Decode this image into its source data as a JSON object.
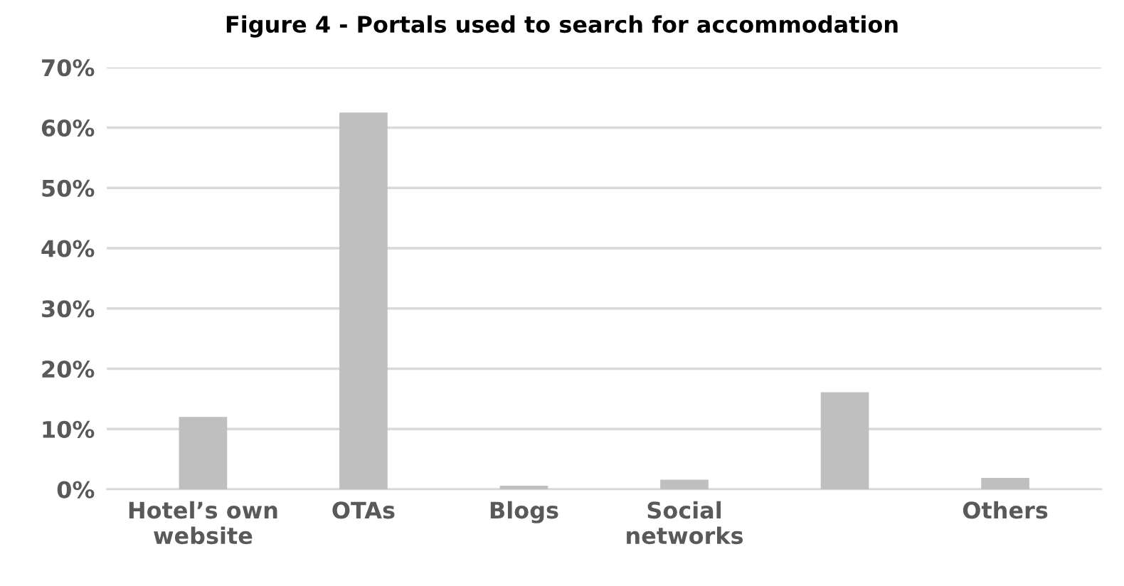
{
  "chart_data": {
    "type": "bar",
    "title": "Figure 4 - Portals used to search for accommodation",
    "categories": [
      "Hotel’s own\nwebsite",
      "OTAs",
      "Blogs",
      "Social\nnetworks",
      null,
      "Others"
    ],
    "values": [
      12.0,
      62.5,
      0.6,
      1.6,
      16.1,
      1.9
    ],
    "color": "#bfbfbf",
    "ylim": [
      0,
      70
    ],
    "yticks": [
      {
        "value": 0,
        "label": "0%"
      },
      {
        "value": 10,
        "label": "10%"
      },
      {
        "value": 20,
        "label": "20%"
      },
      {
        "value": 30,
        "label": "30%"
      },
      {
        "value": 40,
        "label": "40%"
      },
      {
        "value": 50,
        "label": "50%"
      },
      {
        "value": 60,
        "label": "60%"
      },
      {
        "value": 70,
        "label": "70%"
      }
    ],
    "grid": "y"
  }
}
